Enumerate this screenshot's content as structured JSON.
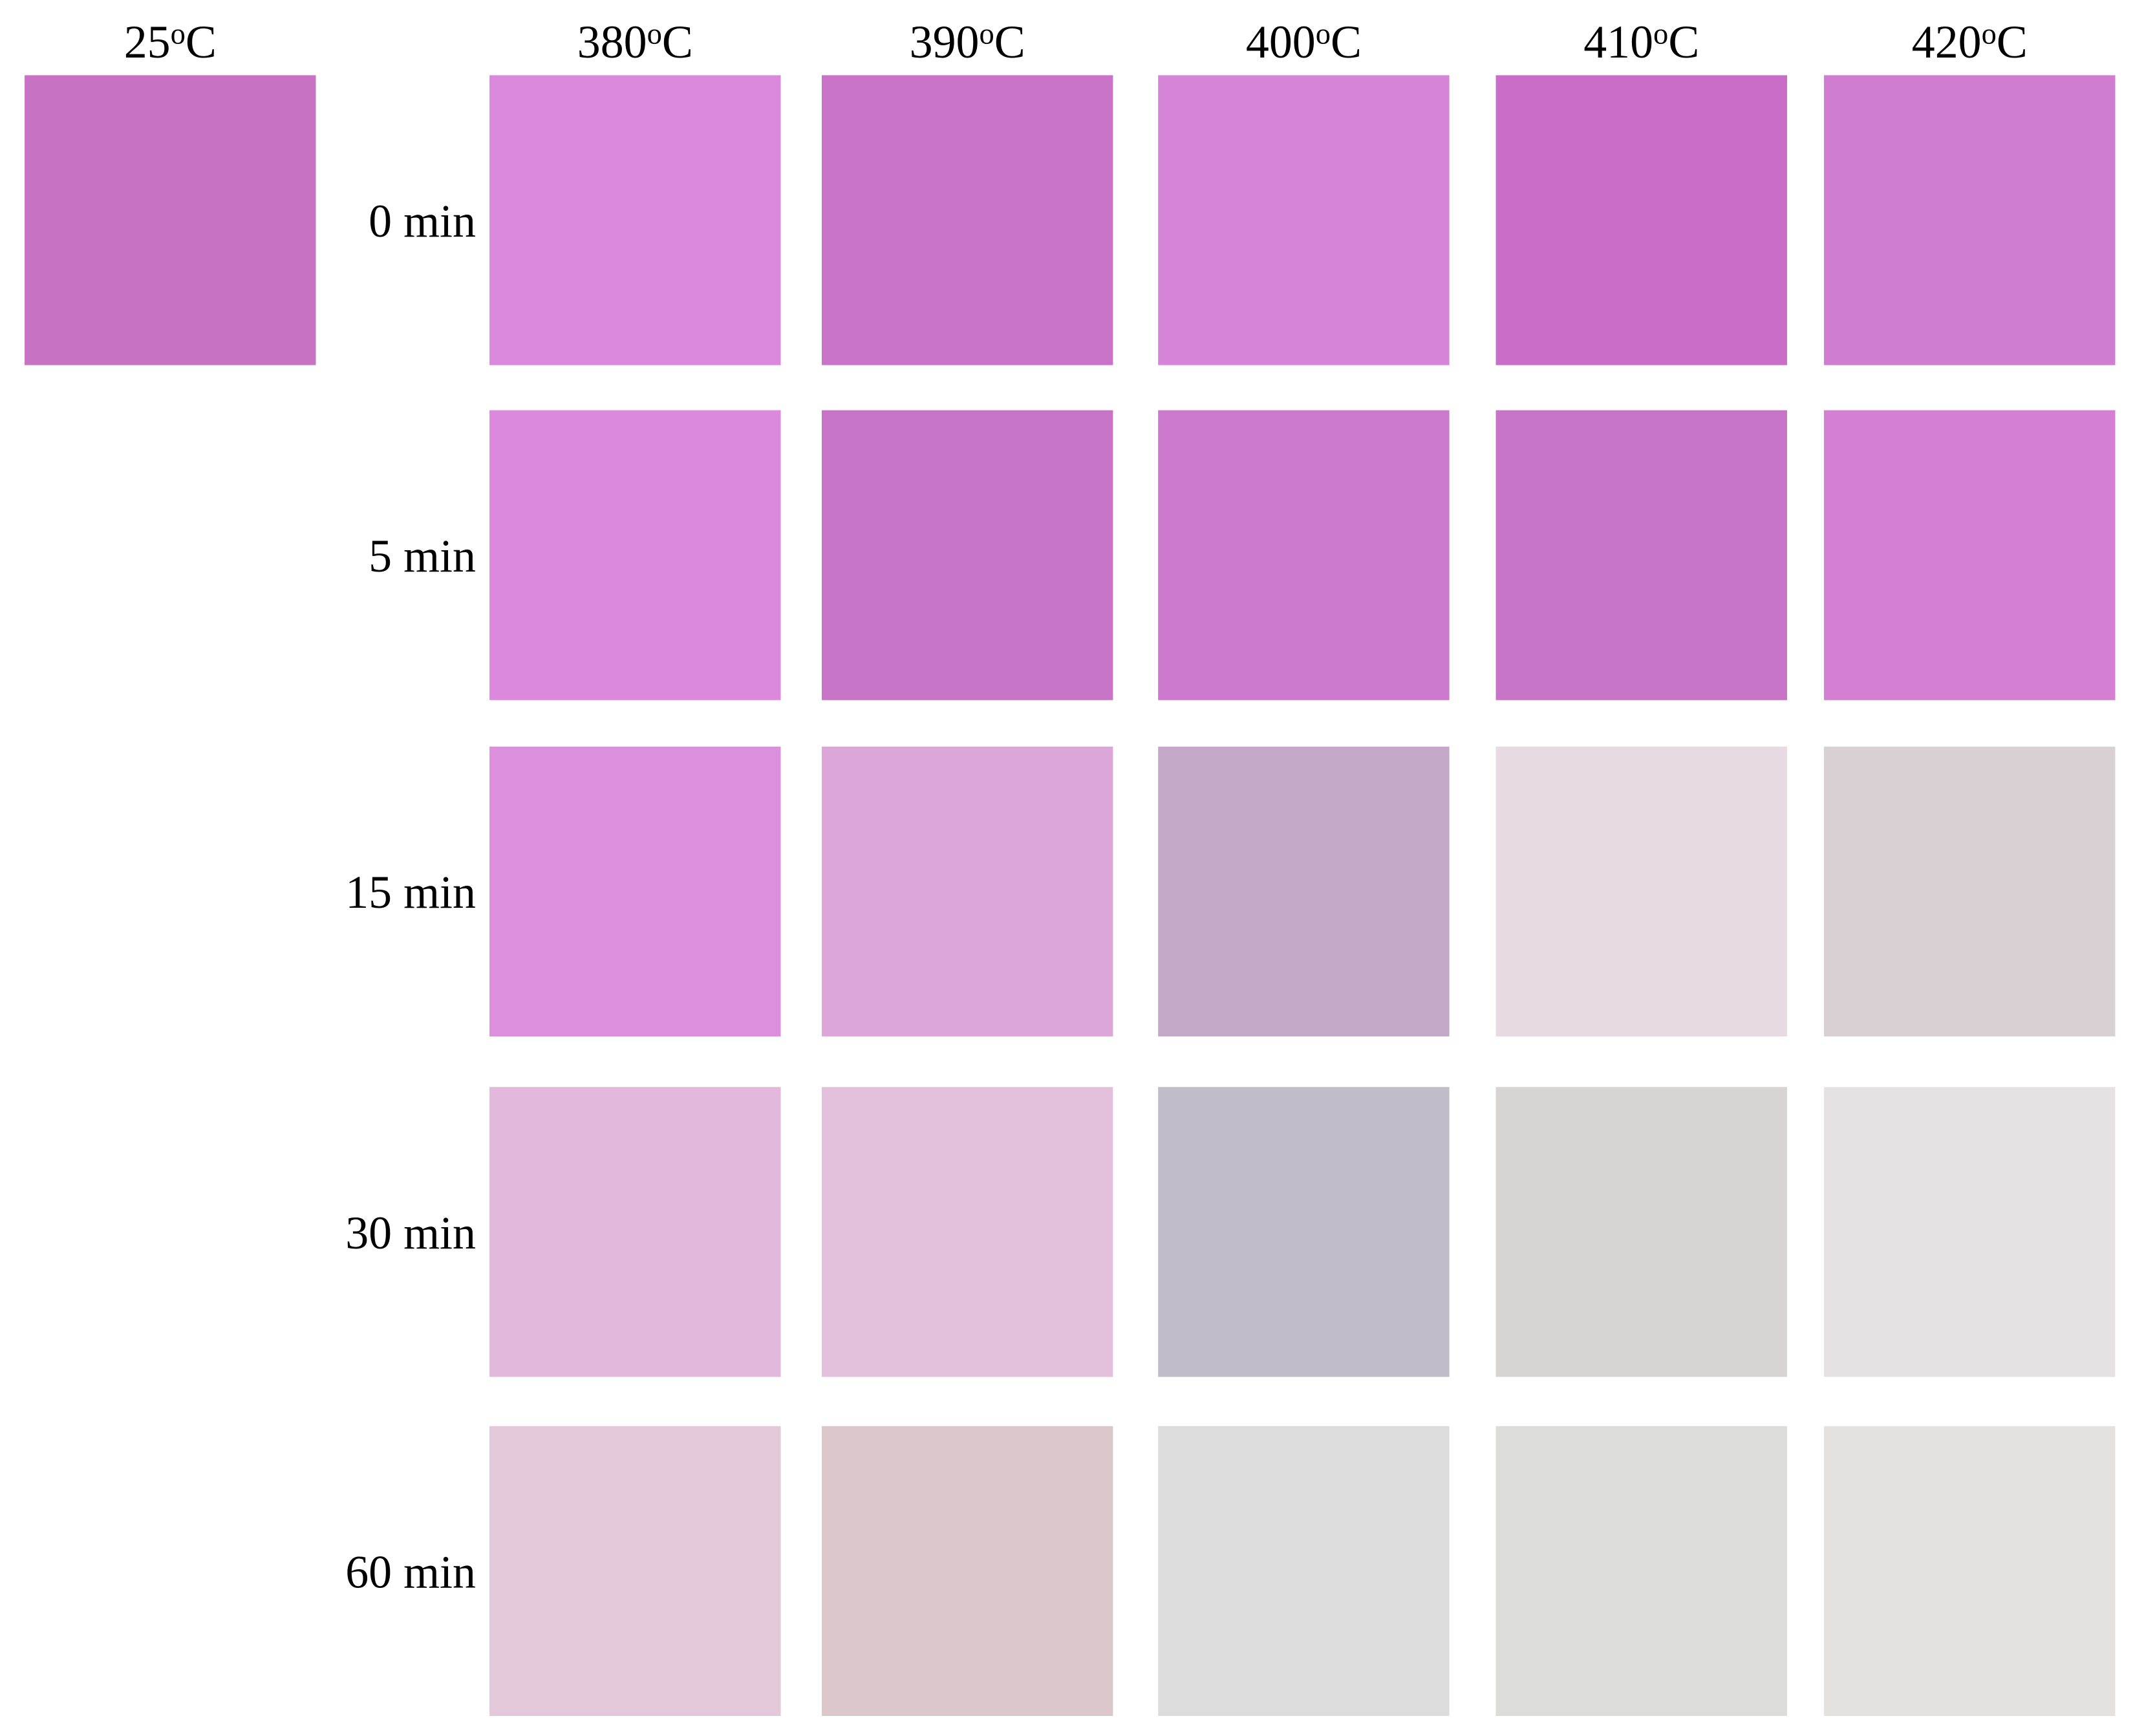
{
  "reference": {
    "temperature": "25",
    "degree": "o",
    "unit": "C",
    "color": "#c872c4"
  },
  "columns": [
    {
      "temperature": "380",
      "degree": "o",
      "unit": "C"
    },
    {
      "temperature": "390",
      "degree": "o",
      "unit": "C"
    },
    {
      "temperature": "400",
      "degree": "o",
      "unit": "C"
    },
    {
      "temperature": "410",
      "degree": "o",
      "unit": "C"
    },
    {
      "temperature": "420",
      "degree": "o",
      "unit": "C"
    }
  ],
  "rows": [
    {
      "label": "0 min",
      "colors": [
        "#d988dc",
        "#c872c8",
        "#d584d8",
        "#c86dc8",
        "#d07ccf"
      ]
    },
    {
      "label": "5 min",
      "colors": [
        "#dc88dd",
        "#c874c6",
        "#cc78cc",
        "#c874c6",
        "#d47fd2"
      ]
    },
    {
      "label": "15 min",
      "colors": [
        "#dc8fdc",
        "#dca6d8",
        "#c4a8c8",
        "#e8dae2",
        "#d8d0d2"
      ]
    },
    {
      "label": "30 min",
      "colors": [
        "#e2b8dc",
        "#e2c0dc",
        "#c0bcc8",
        "#d8d4d4",
        "#e4e2e2"
      ]
    },
    {
      "label": "60 min",
      "colors": [
        "#e2c8d8",
        "#dcc8cc",
        "#dcdcdc",
        "#dcdcda",
        "#e4e2e0"
      ]
    }
  ]
}
